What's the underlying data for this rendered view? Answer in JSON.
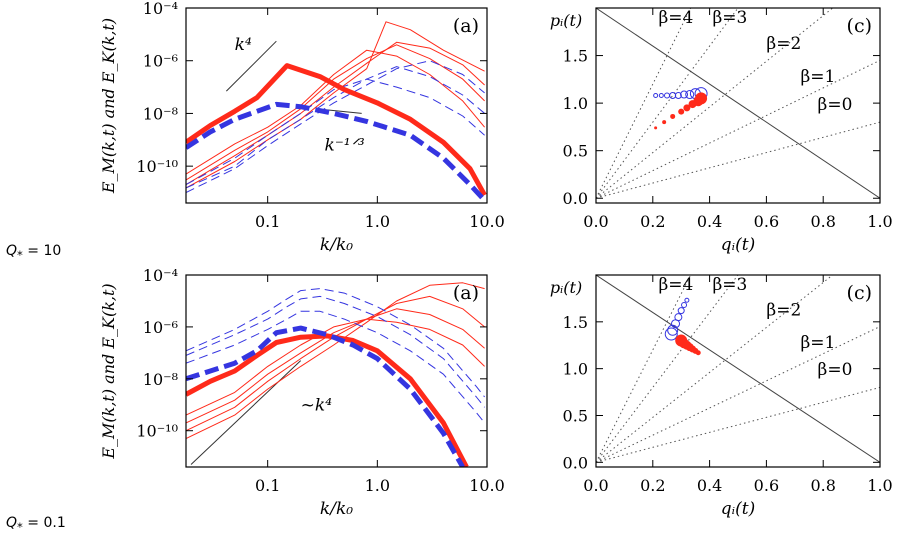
{
  "row_labels": [
    {
      "sym": "Q",
      "sub": "*",
      "rest": " = 10"
    },
    {
      "sym": "Q",
      "sub": "*",
      "rest": " = 0.1"
    }
  ],
  "colors": {
    "magnetic": "#ff2a1a",
    "kinetic": "#3535e0",
    "guide": "#555555",
    "axis": "#000000"
  },
  "chart_data": [
    {
      "id": "spectra_top",
      "type": "line",
      "panel_label": "(a)",
      "xlabel": "k/k₀",
      "ylabel": "E_M(k,t) and E_K(k,t)",
      "xscale": "log",
      "yscale": "log",
      "xlim": [
        0.018,
        10
      ],
      "ylim": [
        4e-12,
        0.0001
      ],
      "xticks": [
        {
          "v": 0.1,
          "label": "0.1"
        },
        {
          "v": 1,
          "label": "1.0"
        },
        {
          "v": 10,
          "label": "10.0"
        }
      ],
      "yticks": [
        {
          "v": 0.0001,
          "label": "10⁻⁴"
        },
        {
          "v": 1e-06,
          "label": "10⁻⁶"
        },
        {
          "v": 1e-08,
          "label": "10⁻⁸"
        },
        {
          "v": 1e-10,
          "label": "10⁻¹⁰"
        }
      ],
      "annotations": [
        {
          "text": "k⁴",
          "at": [
            0.05,
            2.5e-06
          ]
        },
        {
          "text": "k⁻¹ᐟ³",
          "at": [
            0.33,
            4e-10
          ]
        }
      ],
      "guides": [
        {
          "x": [
            0.042,
            0.12
          ],
          "y": [
            7e-08,
            5.5e-06
          ]
        },
        {
          "x": [
            0.33,
            0.72
          ],
          "y": [
            1.4e-08,
            1e-08
          ]
        }
      ],
      "series": [
        {
          "component": "magnetic",
          "style": "thick",
          "x": [
            0.018,
            0.03,
            0.05,
            0.08,
            0.15,
            0.3,
            0.5,
            1,
            2,
            4,
            7,
            9.5
          ],
          "y": [
            8e-10,
            3.5e-09,
            1.2e-08,
            4e-08,
            6.5e-07,
            2.5e-07,
            8e-08,
            2.5e-08,
            6e-09,
            8e-10,
            8e-11,
            8e-12
          ]
        },
        {
          "component": "magnetic",
          "style": "thin",
          "x": [
            0.018,
            0.05,
            0.1,
            0.2,
            0.4,
            0.8,
            1.5,
            3,
            6,
            9.5
          ],
          "y": [
            5e-11,
            7e-10,
            3e-09,
            2e-08,
            3e-07,
            2.5e-06,
            1.5e-06,
            3e-07,
            3e-08,
            3e-09
          ]
        },
        {
          "component": "magnetic",
          "style": "thin",
          "x": [
            0.018,
            0.05,
            0.1,
            0.2,
            0.4,
            0.8,
            1.5,
            3,
            6,
            9.5
          ],
          "y": [
            3e-11,
            4e-10,
            2e-09,
            1.5e-08,
            2e-07,
            1.2e-06,
            4e-06,
            1.2e-06,
            2e-07,
            3e-08
          ]
        },
        {
          "component": "magnetic",
          "style": "thin",
          "x": [
            0.018,
            0.05,
            0.1,
            0.2,
            0.4,
            0.8,
            1.5,
            3,
            6,
            9.5
          ],
          "y": [
            2e-11,
            2.5e-10,
            1.5e-09,
            1e-08,
            1e-07,
            8e-07,
            5e-06,
            3e-06,
            7e-07,
            1.2e-07
          ]
        },
        {
          "component": "magnetic",
          "style": "thin",
          "x": [
            0.018,
            0.05,
            0.1,
            0.2,
            0.4,
            0.8,
            1.2,
            2,
            4,
            9.5
          ],
          "y": [
            1.5e-11,
            1.5e-10,
            1e-09,
            6e-09,
            6e-08,
            5e-07,
            3e-05,
            1.5e-05,
            2.5e-06,
            4e-07
          ]
        },
        {
          "component": "kinetic",
          "style": "thick",
          "x": [
            0.018,
            0.03,
            0.05,
            0.08,
            0.12,
            0.2,
            0.4,
            0.8,
            2,
            4,
            7,
            9.5
          ],
          "y": [
            5e-10,
            2e-09,
            6e-09,
            1.2e-08,
            2.2e-08,
            1.8e-08,
            1e-08,
            5e-09,
            1.5e-09,
            2e-10,
            2e-11,
            5e-12
          ]
        },
        {
          "component": "kinetic",
          "style": "thin",
          "x": [
            0.018,
            0.05,
            0.1,
            0.2,
            0.4,
            0.8,
            1.5,
            3,
            6,
            9.5
          ],
          "y": [
            2e-11,
            2e-10,
            1.5e-09,
            1e-08,
            8e-08,
            2e-07,
            1e-07,
            4e-08,
            8e-09,
            1.5e-09
          ]
        },
        {
          "component": "kinetic",
          "style": "thin",
          "x": [
            0.018,
            0.05,
            0.1,
            0.2,
            0.4,
            0.8,
            1.5,
            3,
            6,
            9.5
          ],
          "y": [
            1.5e-11,
            1e-10,
            1e-09,
            6e-09,
            4e-08,
            2e-07,
            6e-07,
            2.5e-07,
            5e-08,
            1e-08
          ]
        },
        {
          "component": "kinetic",
          "style": "thin",
          "x": [
            0.018,
            0.05,
            0.1,
            0.2,
            0.4,
            0.8,
            1.5,
            3,
            6,
            9.5
          ],
          "y": [
            1e-11,
            8e-11,
            6e-10,
            4e-09,
            2.5e-08,
            1.2e-07,
            5e-07,
            1e-06,
            3e-07,
            6e-08
          ]
        }
      ]
    },
    {
      "id": "trajectory_top",
      "type": "scatter",
      "panel_label": "(c)",
      "xlabel": "qᵢ(t)",
      "ylabel": "pᵢ(t)",
      "xlim": [
        0,
        1
      ],
      "ylim": [
        -0.05,
        2.0
      ],
      "xticks": [
        {
          "v": 0,
          "label": "0.0"
        },
        {
          "v": 0.2,
          "label": "0.2"
        },
        {
          "v": 0.4,
          "label": "0.4"
        },
        {
          "v": 0.6,
          "label": "0.6"
        },
        {
          "v": 0.8,
          "label": "0.8"
        },
        {
          "v": 1,
          "label": "1.0"
        }
      ],
      "yticks": [
        {
          "v": 0,
          "label": "0.0"
        },
        {
          "v": 0.5,
          "label": "0.5"
        },
        {
          "v": 1,
          "label": "1.0"
        },
        {
          "v": 1.5,
          "label": "1.5"
        }
      ],
      "beta_lines": [
        {
          "beta": 4,
          "label": "β=4"
        },
        {
          "beta": 3,
          "label": "β=3"
        },
        {
          "beta": 2,
          "label": "β=2"
        },
        {
          "beta": 1,
          "label": "β=1"
        },
        {
          "beta": 0,
          "label": "β=0"
        }
      ],
      "solid_line": {
        "x": [
          0,
          1
        ],
        "y": [
          2,
          0
        ]
      },
      "series": [
        {
          "component": "kinetic",
          "marker": "open-circle",
          "points": [
            [
              0.21,
              1.08,
              2
            ],
            [
              0.23,
              1.08,
              2
            ],
            [
              0.25,
              1.08,
              2.5
            ],
            [
              0.27,
              1.08,
              3
            ],
            [
              0.29,
              1.08,
              3
            ],
            [
              0.31,
              1.09,
              3.5
            ],
            [
              0.33,
              1.09,
              4
            ],
            [
              0.35,
              1.1,
              5
            ],
            [
              0.37,
              1.1,
              6
            ]
          ]
        },
        {
          "component": "magnetic",
          "marker": "filled-circle",
          "points": [
            [
              0.21,
              0.74,
              1.5
            ],
            [
              0.24,
              0.8,
              2
            ],
            [
              0.27,
              0.86,
              2.5
            ],
            [
              0.3,
              0.91,
              3
            ],
            [
              0.32,
              0.95,
              3.5
            ],
            [
              0.34,
              0.99,
              4
            ],
            [
              0.36,
              1.02,
              5
            ],
            [
              0.37,
              1.05,
              6
            ]
          ]
        }
      ]
    },
    {
      "id": "spectra_bottom",
      "type": "line",
      "panel_label": "(a)",
      "xlabel": "k/k₀",
      "ylabel": "E_M(k,t) and E_K(k,t)",
      "xscale": "log",
      "yscale": "log",
      "xlim": [
        0.018,
        10
      ],
      "ylim": [
        4e-12,
        0.0001
      ],
      "xticks": [
        {
          "v": 0.1,
          "label": "0.1"
        },
        {
          "v": 1,
          "label": "1.0"
        },
        {
          "v": 10,
          "label": "10.0"
        }
      ],
      "yticks": [
        {
          "v": 0.0001,
          "label": "10⁻⁴"
        },
        {
          "v": 1e-06,
          "label": "10⁻⁶"
        },
        {
          "v": 1e-08,
          "label": "10⁻⁸"
        },
        {
          "v": 1e-10,
          "label": "10⁻¹⁰"
        }
      ],
      "annotations": [
        {
          "text": "~k⁴",
          "at": [
            0.2,
            6e-10
          ]
        }
      ],
      "guides": [
        {
          "x": [
            0.02,
            0.2
          ],
          "y": [
            5e-12,
            5e-08
          ]
        }
      ],
      "series": [
        {
          "component": "magnetic",
          "style": "thick",
          "x": [
            0.018,
            0.03,
            0.05,
            0.08,
            0.12,
            0.2,
            0.35,
            0.6,
            1,
            2,
            4,
            6.5
          ],
          "y": [
            2.5e-09,
            8e-09,
            2e-08,
            8e-08,
            2.5e-07,
            4e-07,
            4.5e-07,
            3e-07,
            1.2e-07,
            1e-08,
            2e-10,
            4e-12
          ]
        },
        {
          "component": "magnetic",
          "style": "thin",
          "x": [
            0.018,
            0.05,
            0.1,
            0.2,
            0.4,
            0.8,
            1.5,
            3,
            6,
            9.5
          ],
          "y": [
            4e-10,
            3e-09,
            3e-08,
            2e-07,
            1e-06,
            2e-06,
            1.5e-06,
            8e-07,
            2e-07,
            3e-08
          ]
        },
        {
          "component": "magnetic",
          "style": "thin",
          "x": [
            0.018,
            0.05,
            0.1,
            0.2,
            0.4,
            0.8,
            1.5,
            3,
            6,
            9.5
          ],
          "y": [
            2e-10,
            1.5e-09,
            1.5e-08,
            1e-07,
            6e-07,
            2e-06,
            5e-06,
            3e-06,
            8e-07,
            1.5e-07
          ]
        },
        {
          "component": "magnetic",
          "style": "thin",
          "x": [
            0.018,
            0.05,
            0.1,
            0.2,
            0.4,
            0.8,
            1.5,
            3,
            6,
            9.5
          ],
          "y": [
            1e-10,
            8e-10,
            8e-09,
            6e-08,
            4e-07,
            2e-06,
            8e-06,
            1.5e-05,
            5e-06,
            1e-06
          ]
        },
        {
          "component": "magnetic",
          "style": "thin",
          "x": [
            0.018,
            0.05,
            0.1,
            0.2,
            0.4,
            0.8,
            1.5,
            3,
            6,
            9.5
          ],
          "y": [
            5e-11,
            4e-10,
            4e-09,
            3e-08,
            2e-07,
            1.5e-06,
            1e-05,
            4e-05,
            5e-05,
            3e-05
          ]
        },
        {
          "component": "kinetic",
          "style": "thick",
          "x": [
            0.018,
            0.03,
            0.05,
            0.08,
            0.12,
            0.2,
            0.35,
            0.6,
            1,
            2,
            4,
            6
          ],
          "y": [
            1e-08,
            2e-08,
            4e-08,
            1.2e-07,
            6e-07,
            9e-07,
            5e-07,
            2e-07,
            6e-08,
            4e-09,
            8e-11,
            4e-12
          ]
        },
        {
          "component": "kinetic",
          "style": "thin",
          "x": [
            0.018,
            0.05,
            0.1,
            0.15,
            0.2,
            0.3,
            0.5,
            1,
            2,
            4,
            8,
            9.5
          ],
          "y": [
            4e-08,
            2e-07,
            8e-07,
            2e-06,
            4e-06,
            4e-06,
            2e-06,
            6e-07,
            1.2e-07,
            1.5e-08,
            5e-10,
            2e-10
          ]
        },
        {
          "component": "kinetic",
          "style": "thin",
          "x": [
            0.018,
            0.05,
            0.1,
            0.15,
            0.2,
            0.3,
            0.5,
            1,
            2,
            4,
            8,
            9.5
          ],
          "y": [
            8e-08,
            5e-07,
            2e-06,
            6e-06,
            1.2e-05,
            1.5e-05,
            8e-06,
            2.5e-06,
            5e-07,
            6e-08,
            2e-09,
            8e-10
          ]
        },
        {
          "component": "kinetic",
          "style": "thin",
          "x": [
            0.018,
            0.05,
            0.1,
            0.15,
            0.2,
            0.3,
            0.5,
            1,
            2,
            4,
            8,
            9.5
          ],
          "y": [
            1.2e-07,
            8e-07,
            4e-06,
            1.2e-05,
            2.5e-05,
            3e-05,
            2e-05,
            6e-06,
            1.2e-06,
            1.5e-07,
            5e-09,
            2e-09
          ]
        }
      ]
    },
    {
      "id": "trajectory_bottom",
      "type": "scatter",
      "panel_label": "(c)",
      "xlabel": "qᵢ(t)",
      "ylabel": "pᵢ(t)",
      "xlim": [
        0,
        1
      ],
      "ylim": [
        -0.05,
        2.0
      ],
      "xticks": [
        {
          "v": 0,
          "label": "0.0"
        },
        {
          "v": 0.2,
          "label": "0.2"
        },
        {
          "v": 0.4,
          "label": "0.4"
        },
        {
          "v": 0.6,
          "label": "0.6"
        },
        {
          "v": 0.8,
          "label": "0.8"
        },
        {
          "v": 1,
          "label": "1.0"
        }
      ],
      "yticks": [
        {
          "v": 0,
          "label": "0.0"
        },
        {
          "v": 0.5,
          "label": "0.5"
        },
        {
          "v": 1,
          "label": "1.0"
        },
        {
          "v": 1.5,
          "label": "1.5"
        }
      ],
      "beta_lines": [
        {
          "beta": 4,
          "label": "β=4"
        },
        {
          "beta": 3,
          "label": "β=3"
        },
        {
          "beta": 2,
          "label": "β=2"
        },
        {
          "beta": 1,
          "label": "β=1"
        },
        {
          "beta": 0,
          "label": "β=0"
        }
      ],
      "solid_line": {
        "x": [
          0,
          1
        ],
        "y": [
          2,
          0
        ]
      },
      "series": [
        {
          "component": "kinetic",
          "marker": "open-circle",
          "points": [
            [
              0.32,
              1.73,
              2
            ],
            [
              0.31,
              1.68,
              2.5
            ],
            [
              0.3,
              1.62,
              3
            ],
            [
              0.29,
              1.55,
              3.5
            ],
            [
              0.28,
              1.48,
              4
            ],
            [
              0.27,
              1.41,
              5
            ],
            [
              0.265,
              1.37,
              6
            ]
          ]
        },
        {
          "component": "magnetic",
          "marker": "filled-circle",
          "points": [
            [
              0.3,
              1.3,
              6
            ],
            [
              0.31,
              1.27,
              5
            ],
            [
              0.32,
              1.25,
              4.5
            ],
            [
              0.33,
              1.23,
              4
            ],
            [
              0.34,
              1.21,
              3.5
            ],
            [
              0.35,
              1.19,
              3
            ],
            [
              0.36,
              1.17,
              2.5
            ]
          ]
        }
      ]
    }
  ]
}
